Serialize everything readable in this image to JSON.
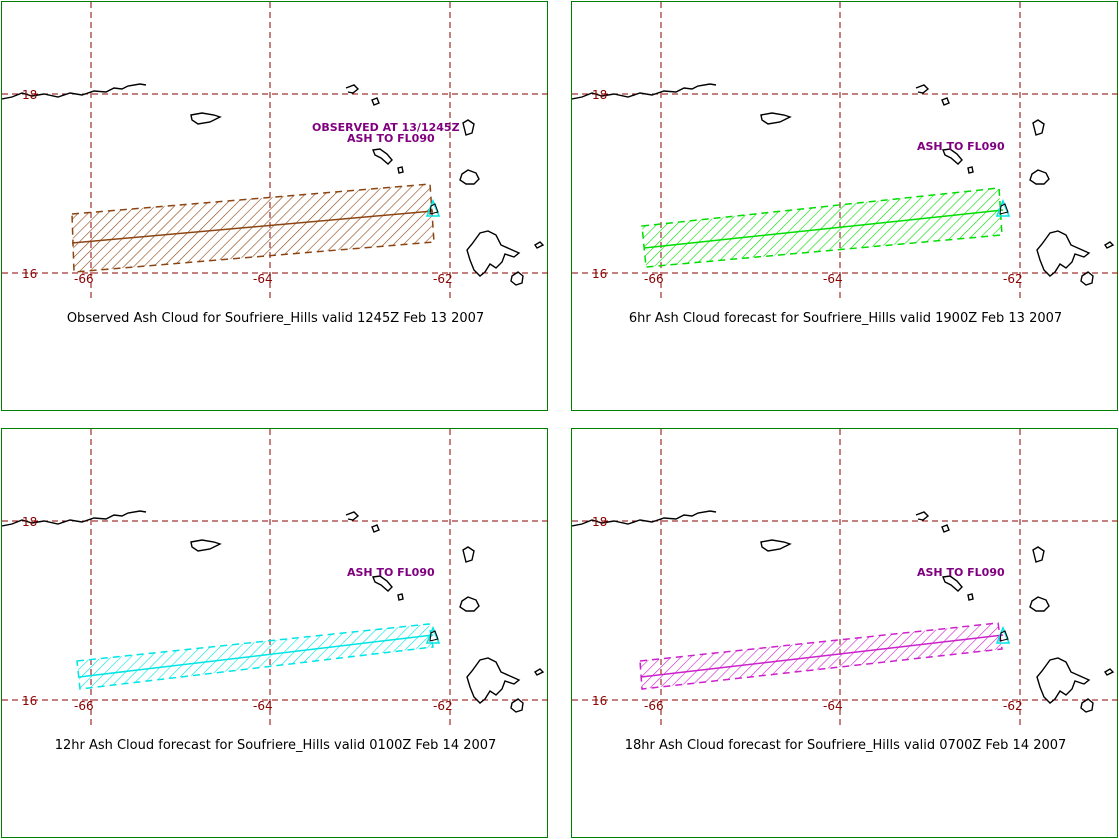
{
  "colors": {
    "panel_border": "#008000",
    "grid": "#8b0000",
    "coast": "#000000",
    "annotation": "#800080",
    "volcano_marker": "#00e5e5"
  },
  "panels": [
    {
      "caption": "Observed Ash Cloud for Soufriere_Hills valid 1245Z Feb 13 2007",
      "annotations": [
        "OBSERVED AT 13/1245Z",
        "ASH TO FL090"
      ],
      "cloud_color": "#8b4513",
      "lat_labels": [
        "18",
        "16"
      ],
      "lon_labels": [
        "-66",
        "-64",
        "-62"
      ]
    },
    {
      "caption": "6hr Ash Cloud forecast for Soufriere_Hills valid 1900Z Feb 13 2007",
      "annotations": [
        "ASH TO FL090"
      ],
      "cloud_color": "#00dd00",
      "lat_labels": [
        "18",
        "16"
      ],
      "lon_labels": [
        "-66",
        "-64",
        "-62"
      ]
    },
    {
      "caption": "12hr Ash Cloud forecast for Soufriere_Hills valid 0100Z Feb 14 2007",
      "annotations": [
        "ASH TO FL090"
      ],
      "cloud_color": "#00e5e5",
      "lat_labels": [
        "18",
        "16"
      ],
      "lon_labels": [
        "-66",
        "-64",
        "-62"
      ]
    },
    {
      "caption": "18hr Ash Cloud forecast for Soufriere_Hills valid 0700Z Feb 14 2007",
      "annotations": [
        "ASH TO FL090"
      ],
      "cloud_color": "#cc22cc",
      "lat_labels": [
        "18",
        "16"
      ],
      "lon_labels": [
        "-66",
        "-64",
        "-62"
      ]
    }
  ]
}
